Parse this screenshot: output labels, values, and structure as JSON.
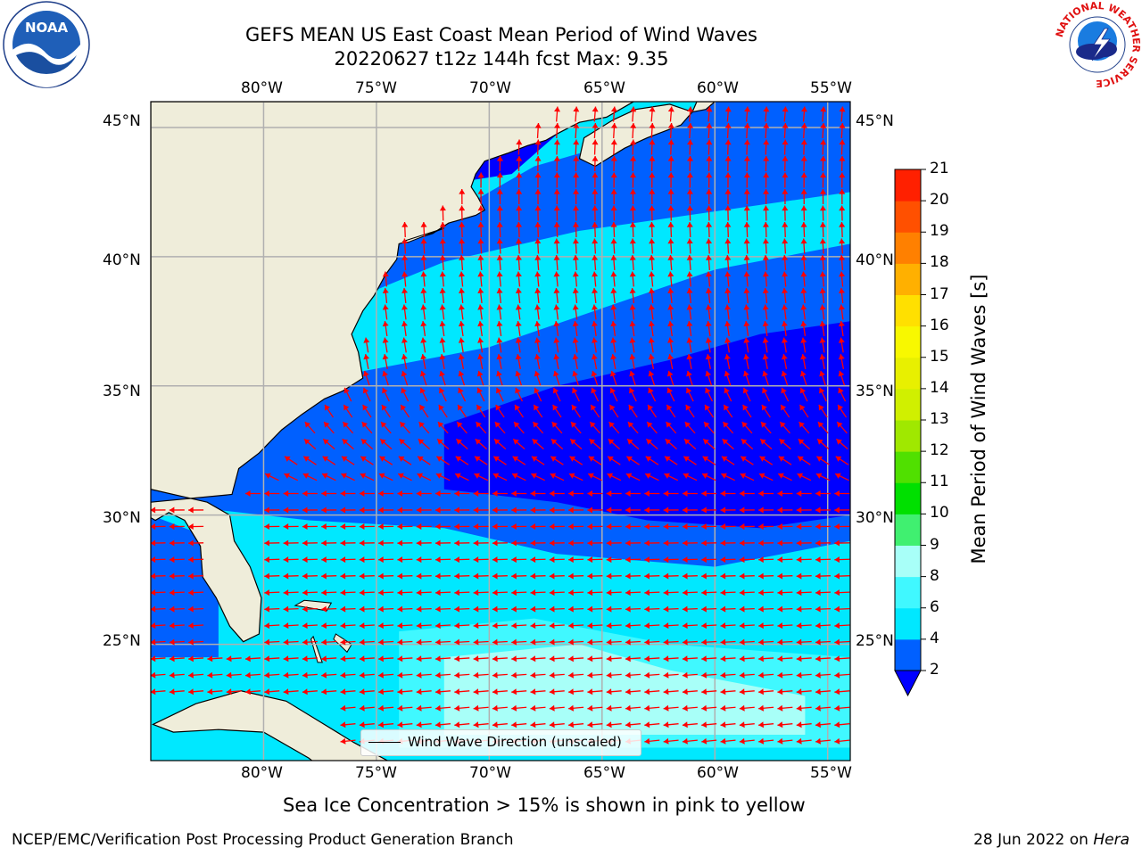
{
  "title_line1": "GEFS MEAN US East Coast Mean Period of Wind Waves",
  "title_line2": "20220627 t12z 144h fcst   Max: 9.35",
  "map": {
    "lon_labels": [
      "80°W",
      "75°W",
      "70°W",
      "65°W",
      "60°W",
      "55°W"
    ],
    "lat_labels": [
      "45°N",
      "40°N",
      "35°N",
      "30°N",
      "25°N"
    ],
    "lon_range": [
      -85,
      -54
    ],
    "lat_range": [
      20.5,
      46
    ],
    "colors": {
      "land": "#efedda",
      "coast": "#000000",
      "grid": "#b0b0b0",
      "arrow": "#ff0000"
    }
  },
  "legend": {
    "label": "Wind Wave Direction (unscaled)"
  },
  "colorbar": {
    "title": "Mean Period of Wind Waves [s]",
    "ticks": [
      "2",
      "4",
      "6",
      "8",
      "9",
      "10",
      "11",
      "12",
      "13",
      "14",
      "15",
      "16",
      "17",
      "18",
      "19",
      "20",
      "21"
    ],
    "colors": [
      "#0060ff",
      "#00e8ff",
      "#40f8ff",
      "#a8fff8",
      "#40f070",
      "#00e000",
      "#50e000",
      "#a0e800",
      "#d0f000",
      "#e8f000",
      "#f8f800",
      "#ffe000",
      "#ffb000",
      "#ff8000",
      "#ff5000",
      "#ff2000"
    ],
    "under_color": "#0000ff"
  },
  "note": "Sea Ice Concentration > 15% is shown in pink to yellow",
  "footer": {
    "left": "NCEP/EMC/Verification Post Processing Product Generation Branch",
    "right_date": "28 Jun 2022 on",
    "right_host": "Hera"
  },
  "logos": {
    "noaa": "NOAA",
    "nws_ring": "NATIONAL WEATHER SERVICE"
  }
}
